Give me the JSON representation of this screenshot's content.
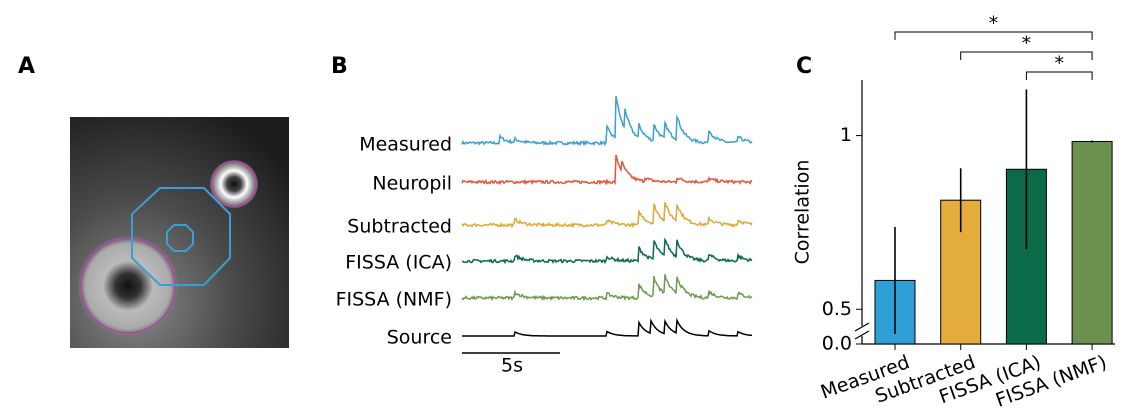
{
  "panels": {
    "a": {
      "label": "A"
    },
    "b": {
      "label": "B",
      "traces": [
        "Measured",
        "Neuropil",
        "Subtracted",
        "FISSA (ICA)",
        "FISSA (NMF)",
        "Source"
      ],
      "scale_bar": "5s"
    },
    "c": {
      "label": "C"
    }
  },
  "chart_data": {
    "type": "bar",
    "ylabel": "Correlation",
    "categories": [
      "Measured",
      "Subtracted",
      "FISSA (ICA)",
      "FISSA (NMF)"
    ],
    "values": [
      0.583,
      0.814,
      0.903,
      0.983
    ],
    "errors": [
      0.154,
      0.092,
      0.23,
      0.003
    ],
    "colors": [
      "#2f9fd8",
      "#e4ac3a",
      "#0b6a47",
      "#6b9150"
    ],
    "ylim": [
      0.4,
      1.16
    ],
    "yticks": [
      {
        "value": 0,
        "label": "0.0"
      },
      0.5,
      1
    ],
    "annotations": [
      "*",
      "*",
      "*"
    ]
  }
}
